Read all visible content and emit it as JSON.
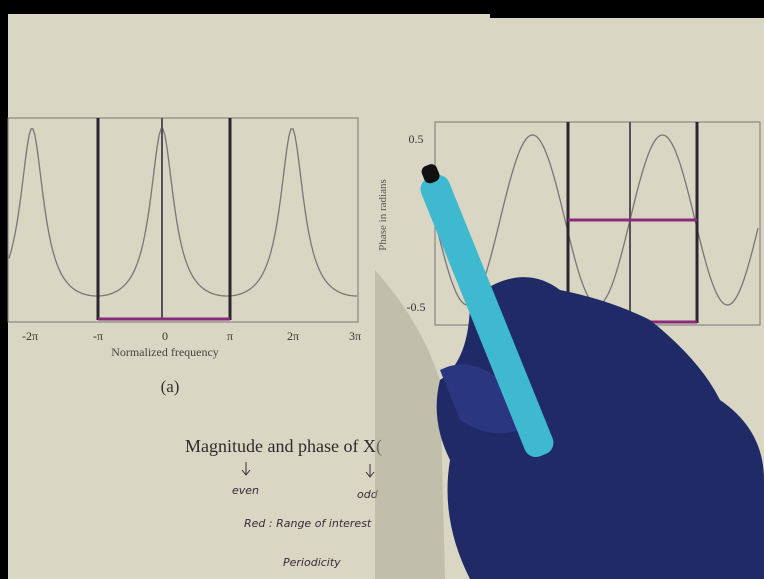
{
  "left_plot": {
    "xticks": [
      "-2π",
      "-π",
      "0",
      "π",
      "2π",
      "3π"
    ],
    "xlabel": "Normalized frequency",
    "caption": "(a)"
  },
  "right_plot": {
    "yticks": [
      "0.5",
      "-0.5"
    ],
    "ylabel": "Phase in radians"
  },
  "notes": {
    "heading": "Magnitude and phase of X(",
    "even": "even",
    "odd": "odd",
    "legend": "Red : Range of interest",
    "periodicity": "Periodicity"
  }
}
